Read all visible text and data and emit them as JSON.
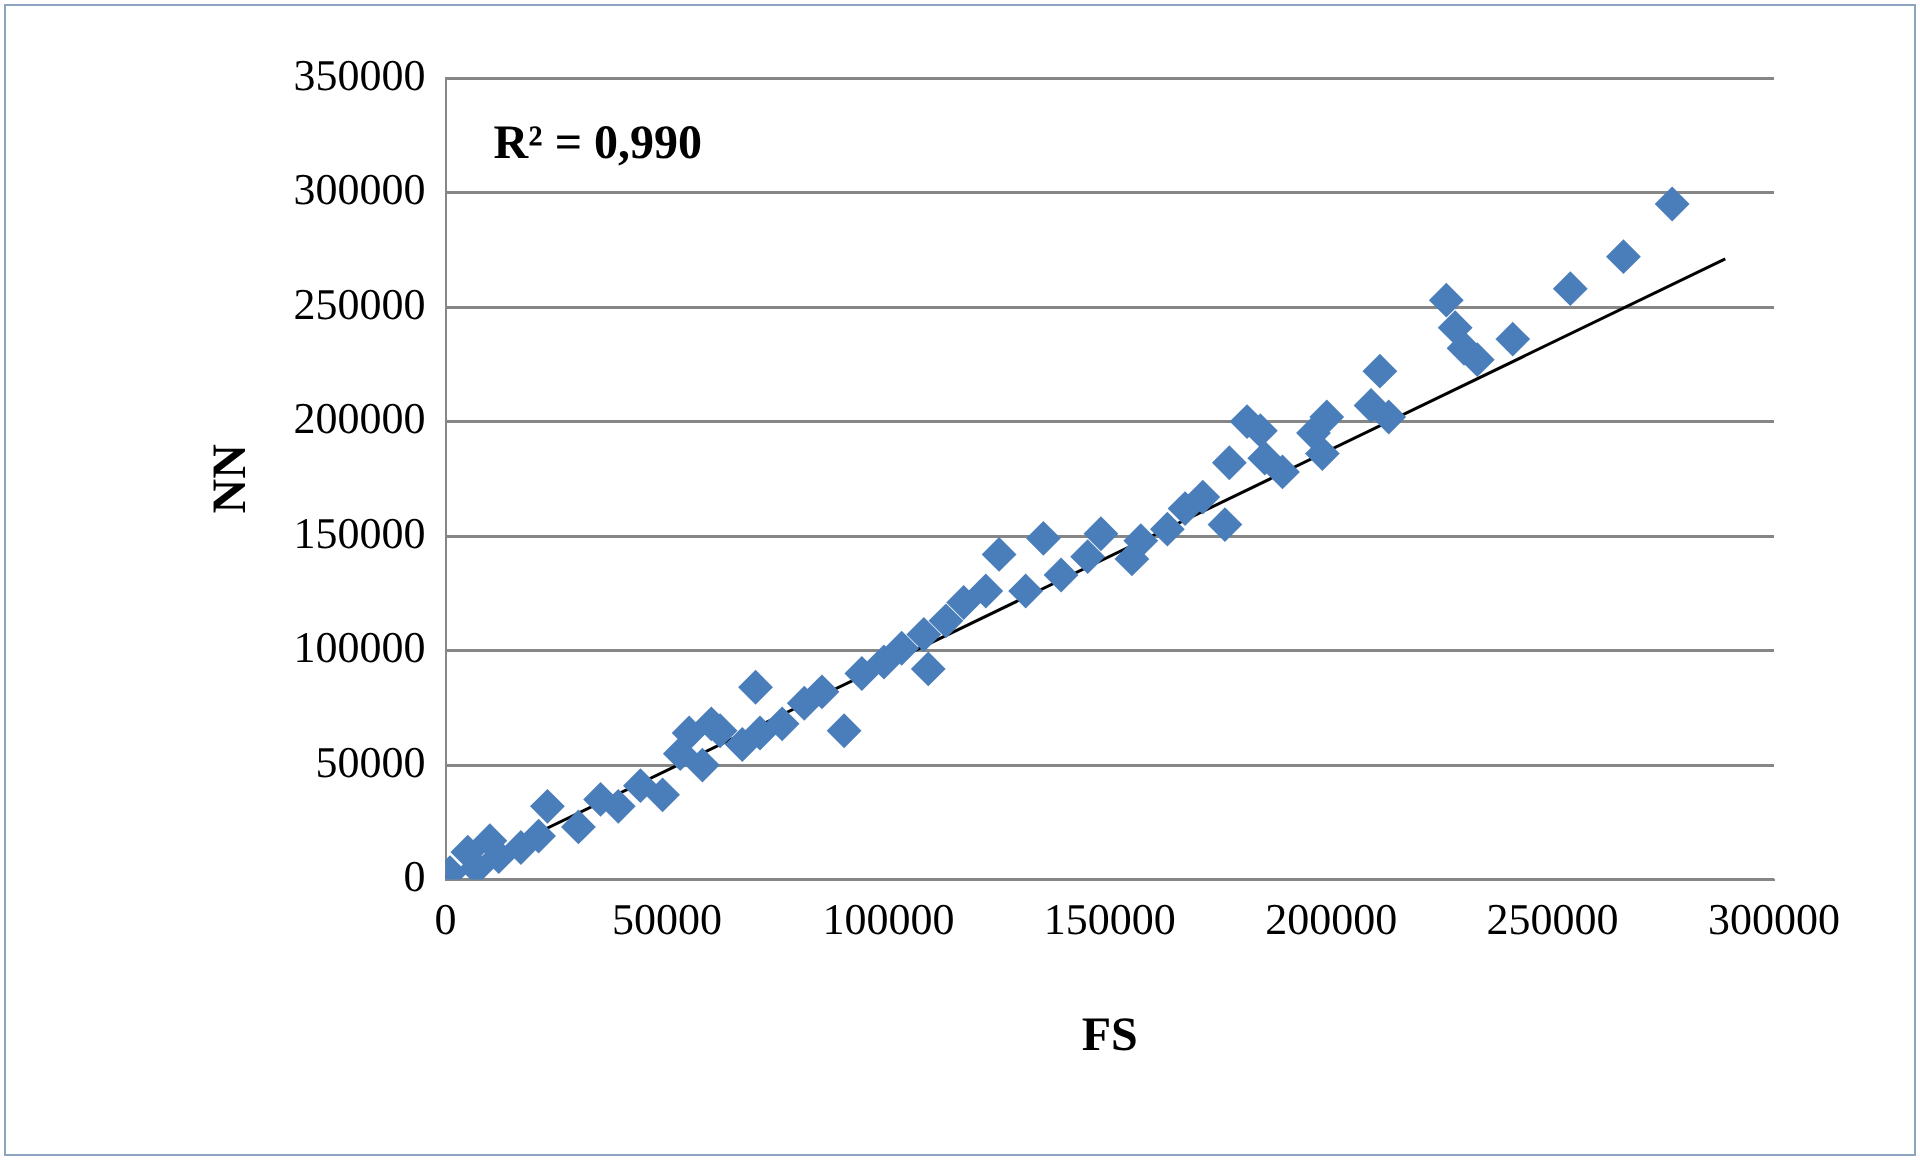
{
  "chart_data": {
    "type": "scatter",
    "xlabel": "FS",
    "ylabel": "NN",
    "annotations": [
      "R² = 0,990"
    ],
    "xlim": [
      0,
      300000
    ],
    "xticks": [
      0,
      50000,
      100000,
      150000,
      200000,
      250000,
      300000
    ],
    "ylim": [
      0,
      350000
    ],
    "yticks": [
      0,
      50000,
      100000,
      150000,
      200000,
      250000,
      300000,
      350000
    ],
    "grid": "y",
    "legend": false,
    "marker": "diamond",
    "series": [
      {
        "color": "#4a7ebb",
        "x": [
          1000,
          5000,
          7000,
          10000,
          12000,
          17000,
          21000,
          23000,
          30000,
          35000,
          39000,
          44000,
          49000,
          53000,
          55000,
          58000,
          60000,
          62000,
          67000,
          70000,
          71000,
          76000,
          81000,
          85000,
          90000,
          94000,
          99000,
          103000,
          108000,
          109000,
          113000,
          117000,
          122000,
          125000,
          131000,
          135000,
          139000,
          145000,
          148000,
          155000,
          157000,
          163000,
          167000,
          171000,
          176000,
          177000,
          181000,
          184000,
          185000,
          189000,
          196000,
          198000,
          199000,
          209000,
          211000,
          213000,
          226000,
          228000,
          230000,
          233000,
          241000,
          254000,
          266000,
          277000
        ],
        "values": [
          3000,
          12000,
          5000,
          17000,
          10000,
          14000,
          19000,
          32000,
          23000,
          35000,
          32000,
          41000,
          37000,
          55000,
          64000,
          50000,
          68000,
          65000,
          59000,
          84000,
          64000,
          68000,
          77000,
          82000,
          65000,
          90000,
          95000,
          101000,
          107000,
          92000,
          113000,
          121000,
          126000,
          142000,
          126000,
          149000,
          133000,
          141000,
          151000,
          140000,
          148000,
          153000,
          162000,
          167000,
          155000,
          182000,
          200000,
          196000,
          184000,
          178000,
          195000,
          186000,
          202000,
          207000,
          222000,
          202000,
          253000,
          241000,
          232000,
          227000,
          236000,
          258000,
          272000,
          295000
        ]
      },
      {
        "type": "line",
        "color": "#000000",
        "marker": "none",
        "x": [
          0,
          289000
        ],
        "values": [
          1000,
          271000
        ]
      }
    ]
  }
}
